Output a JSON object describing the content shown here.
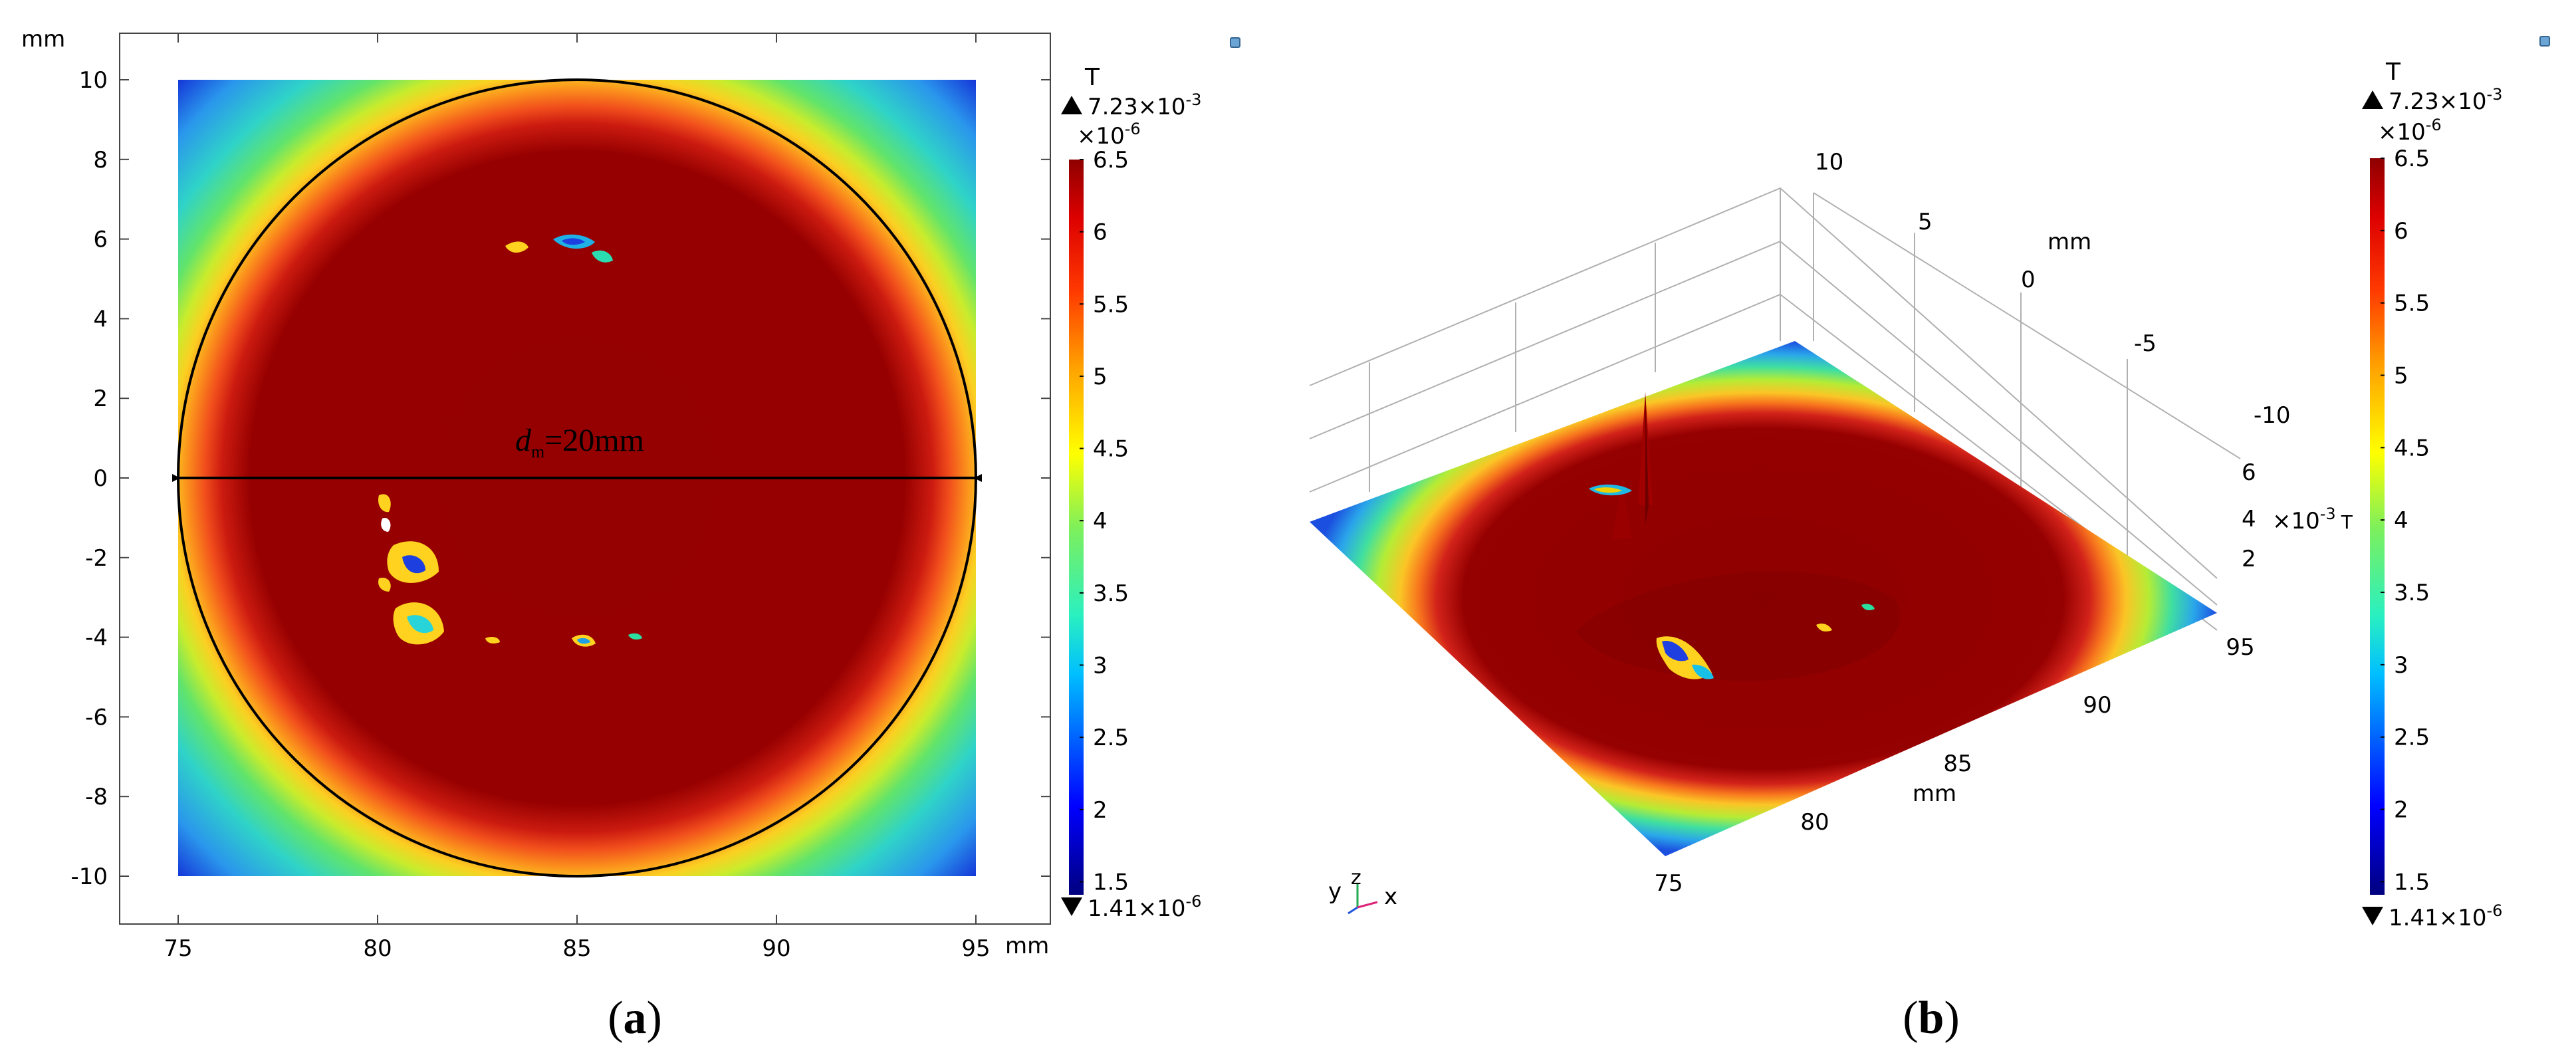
{
  "chart_data": [
    {
      "type": "heatmap",
      "panel_label": "(a)",
      "x_unit": "mm",
      "y_unit": "mm",
      "xlim": [
        75,
        95
      ],
      "ylim": [
        -10,
        10
      ],
      "x_ticks": [
        "75",
        "80",
        "85",
        "90",
        "95"
      ],
      "y_ticks": [
        "10",
        "8",
        "6",
        "4",
        "2",
        "0",
        "-2",
        "-4",
        "-6",
        "-8",
        "-10"
      ],
      "annotation": {
        "prefix": "d",
        "subscript": "m",
        "suffix": "=20mm"
      },
      "circle": {
        "center_x": 85,
        "center_y": 0,
        "diameter": 20
      },
      "colorbar": {
        "quantity": "T",
        "max_text": "7.23×10",
        "max_exp": "-3",
        "min_text": "1.41×10",
        "min_exp": "-6",
        "scale_text": "×10",
        "scale_exp": "-6",
        "range": [
          1.41,
          6.5
        ],
        "ticks": [
          "6.5",
          "6",
          "5.5",
          "5",
          "4.5",
          "4",
          "3.5",
          "3",
          "2.5",
          "2",
          "1.5"
        ]
      }
    },
    {
      "type": "surface",
      "panel_label": "(b)",
      "x_unit": "mm",
      "y_unit": "mm",
      "z_unit_text": "×10",
      "z_unit_exp": "-3",
      "z_quantity": "T",
      "x_ticks": [
        "75",
        "80",
        "85",
        "90",
        "95"
      ],
      "y_ticks": [
        "10",
        "5",
        "0",
        "-5",
        "-10"
      ],
      "z_ticks": [
        "6",
        "4",
        "2"
      ],
      "axis_triad": [
        "y",
        "z",
        "x"
      ],
      "colorbar": {
        "quantity": "T",
        "max_text": "7.23×10",
        "max_exp": "-3",
        "min_text": "1.41×10",
        "min_exp": "-6",
        "scale_text": "×10",
        "scale_exp": "-6",
        "range": [
          1.41,
          6.5
        ],
        "ticks": [
          "6.5",
          "6",
          "5.5",
          "5",
          "4.5",
          "4",
          "3.5",
          "3",
          "2.5",
          "2",
          "1.5"
        ]
      }
    }
  ]
}
